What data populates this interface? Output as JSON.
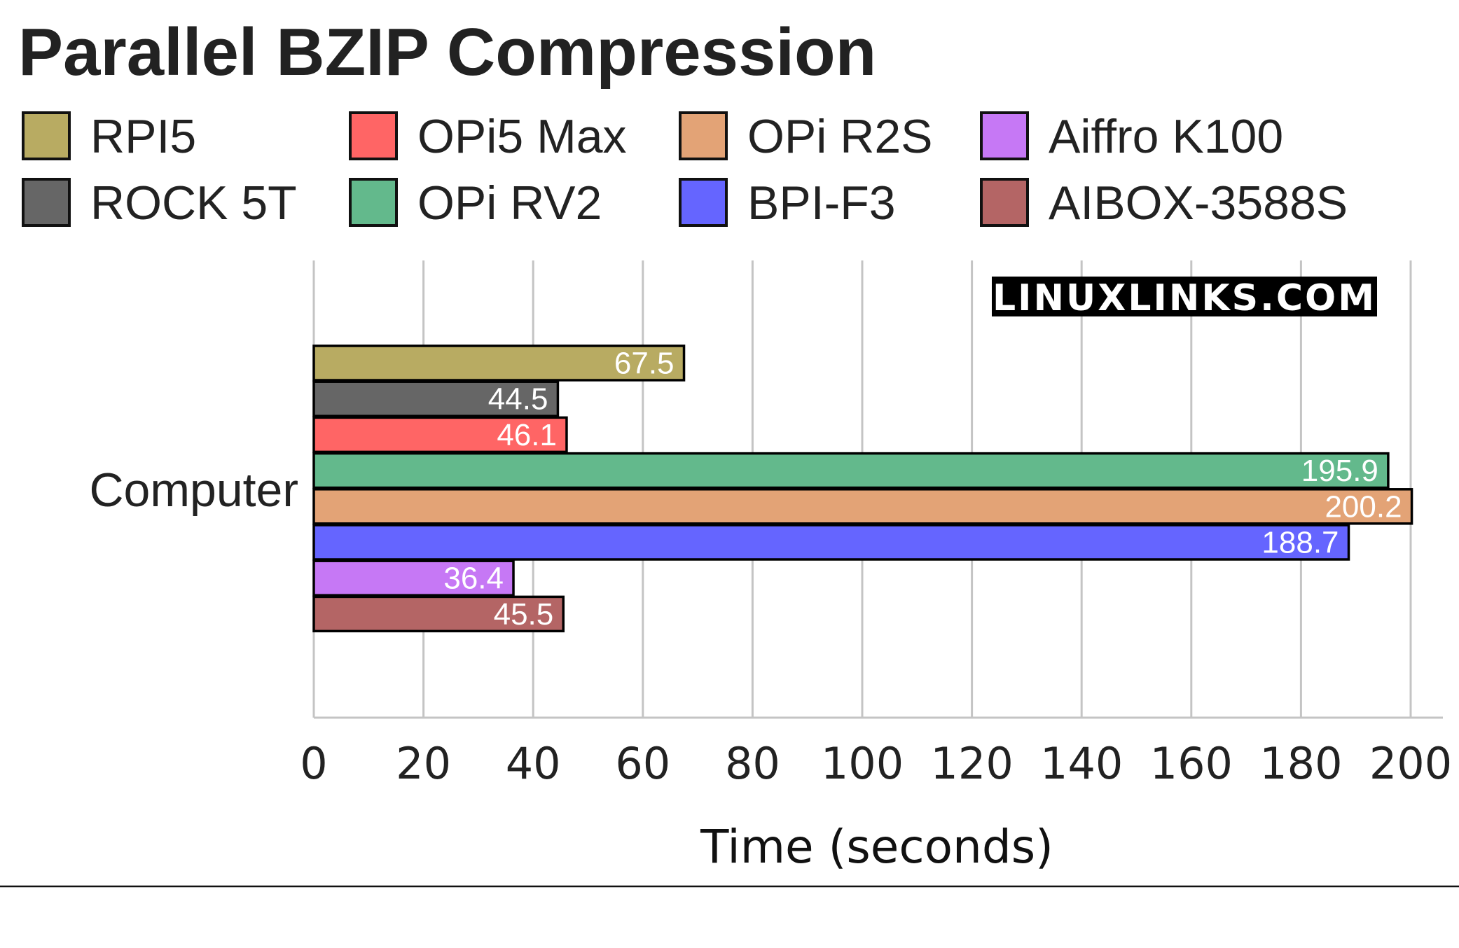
{
  "chart_data": {
    "type": "bar",
    "orientation": "horizontal",
    "title": "Parallel BZIP Compression",
    "xlabel": "Time (seconds)",
    "ylabel": "",
    "categories": [
      "Computer"
    ],
    "xlim": [
      0,
      200
    ],
    "xticks": [
      0,
      20,
      40,
      60,
      80,
      100,
      120,
      140,
      160,
      180,
      200
    ],
    "grid": true,
    "legend_position": "top",
    "watermark": "LINUXLINKS.COM",
    "series": [
      {
        "name": "RPI5",
        "values": [
          67.5
        ],
        "color": "#b8ab62"
      },
      {
        "name": "ROCK 5T",
        "values": [
          44.5
        ],
        "color": "#666666"
      },
      {
        "name": "OPi5 Max",
        "values": [
          46.1
        ],
        "color": "#ff6565"
      },
      {
        "name": "OPi RV2",
        "values": [
          195.9
        ],
        "color": "#63b98c"
      },
      {
        "name": "OPi R2S",
        "values": [
          200.2
        ],
        "color": "#e3a376"
      },
      {
        "name": "BPI-F3",
        "values": [
          188.7
        ],
        "color": "#6565ff"
      },
      {
        "name": "Aiffro K100",
        "values": [
          36.4
        ],
        "color": "#c678f5"
      },
      {
        "name": "AIBOX-3588S",
        "values": [
          45.5
        ],
        "color": "#b46565"
      }
    ],
    "legend_order": [
      "RPI5",
      "OPi5 Max",
      "OPi R2S",
      "Aiffro K100",
      "ROCK 5T",
      "OPi RV2",
      "BPI-F3",
      "AIBOX-3588S"
    ]
  }
}
